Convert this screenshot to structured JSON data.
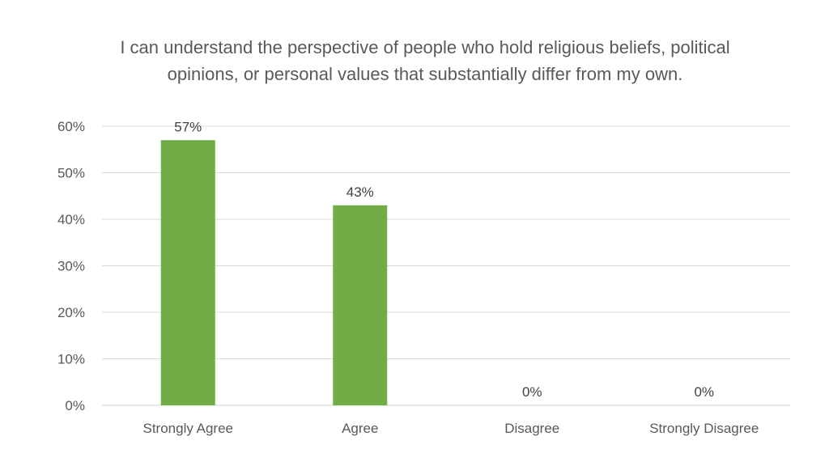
{
  "chart_data": {
    "type": "bar",
    "title": "I can understand the perspective of people who hold religious beliefs, political opinions, or personal values that substantially differ from my own.",
    "categories": [
      "Strongly Agree",
      "Agree",
      "Disagree",
      "Strongly Disagree"
    ],
    "values": [
      57,
      43,
      0,
      0
    ],
    "data_labels": [
      "57%",
      "43%",
      "0%",
      "0%"
    ],
    "y_ticks": [
      "0%",
      "10%",
      "20%",
      "30%",
      "40%",
      "50%",
      "60%"
    ],
    "ylim": [
      0,
      60
    ],
    "ylabel": "",
    "xlabel": "",
    "grid": true,
    "legend": "none",
    "bar_color": "#70AD47",
    "grid_color": "#D9D9D9"
  }
}
